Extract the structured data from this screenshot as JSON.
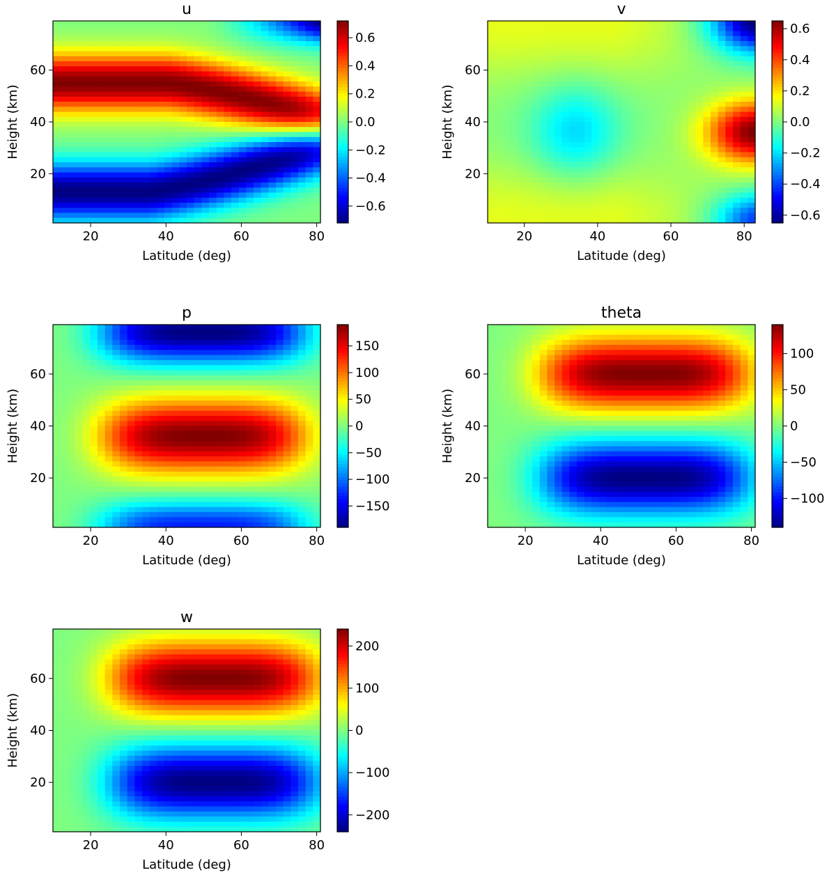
{
  "chart_data": [
    {
      "id": "u",
      "type": "heatmap",
      "title": "u",
      "xlabel": "Latitude (deg)",
      "ylabel": "Height (km)",
      "xlim": [
        10,
        81
      ],
      "ylim": [
        1,
        79
      ],
      "xticks": [
        20,
        40,
        60,
        80
      ],
      "yticks": [
        20,
        40,
        60
      ],
      "colorbar": {
        "range": [
          -0.72,
          0.72
        ],
        "ticks": [
          -0.6,
          -0.4,
          -0.2,
          0.0,
          0.2,
          0.4,
          0.6
        ],
        "tick_labels": [
          "−0.6",
          "−0.4",
          "−0.2",
          "0.0",
          "0.2",
          "0.4",
          "0.6"
        ]
      },
      "pattern": "Positive band centred near 55 km at 10–40° descending to ~40 km at 80°; negative band near 15 km at 40° rising toward 30 km at 80°; negative at top right near 75 km, 80°"
    },
    {
      "id": "v",
      "type": "heatmap",
      "title": "v",
      "xlabel": "Latitude (deg)",
      "ylabel": "Height (km)",
      "xlim": [
        10,
        83
      ],
      "ylim": [
        1,
        79
      ],
      "xticks": [
        20,
        40,
        60,
        80
      ],
      "yticks": [
        20,
        40,
        60
      ],
      "colorbar": {
        "range": [
          -0.65,
          0.65
        ],
        "ticks": [
          -0.6,
          -0.4,
          -0.2,
          0.0,
          0.2,
          0.4,
          0.6
        ],
        "tick_labels": [
          "−0.6",
          "−0.4",
          "−0.2",
          "0.0",
          "0.2",
          "0.4",
          "0.6"
        ]
      },
      "pattern": "Weak positive (~0.15) at top and bottom at low latitudes; weak negative minimum (~−0.2) near 35 km, 34°; strong positive maximum (~0.6) near 35 km, 82°; strong negative (~−0.65) near 78 km, 82° and weaker negative near 5 km, 80°"
    },
    {
      "id": "p",
      "type": "heatmap",
      "title": "p",
      "xlabel": "Latitude (deg)",
      "ylabel": "Height (km)",
      "xlim": [
        10,
        81
      ],
      "ylim": [
        1,
        79
      ],
      "xticks": [
        20,
        40,
        60,
        80
      ],
      "yticks": [
        20,
        40,
        60
      ],
      "colorbar": {
        "range": [
          -190,
          190
        ],
        "ticks": [
          -150,
          -100,
          -50,
          0,
          50,
          100,
          150
        ],
        "tick_labels": [
          "−150",
          "−100",
          "−50",
          "0",
          "50",
          "100",
          "150"
        ]
      },
      "pattern": "Positive maximum (~190) near 36 km, 50°; negative minima (~−190) near 75 km, 50° and weaker negative near 3 km; amplitude fades toward 10° and 80°"
    },
    {
      "id": "theta",
      "type": "heatmap",
      "title": "theta",
      "xlabel": "Latitude (deg)",
      "ylabel": "Height (km)",
      "xlim": [
        10,
        81
      ],
      "ylim": [
        1,
        79
      ],
      "xticks": [
        20,
        40,
        60,
        80
      ],
      "yticks": [
        20,
        40,
        60
      ],
      "colorbar": {
        "range": [
          -140,
          140
        ],
        "ticks": [
          -100,
          -50,
          0,
          50,
          100
        ],
        "tick_labels": [
          "−100",
          "−50",
          "0",
          "50",
          "100"
        ]
      },
      "pattern": "Positive maximum (~140) near 60 km, 52°; negative minimum (~−140) near 20 km, 52°; near zero at top, bottom and edges"
    },
    {
      "id": "w",
      "type": "heatmap",
      "title": "w",
      "xlabel": "Latitude (deg)",
      "ylabel": "Height (km)",
      "xlim": [
        10,
        81
      ],
      "ylim": [
        1,
        79
      ],
      "xticks": [
        20,
        40,
        60,
        80
      ],
      "yticks": [
        20,
        40,
        60
      ],
      "colorbar": {
        "range": [
          -240,
          240
        ],
        "ticks": [
          -200,
          -100,
          0,
          100,
          200
        ],
        "tick_labels": [
          "−200",
          "−100",
          "0",
          "100",
          "200"
        ]
      },
      "pattern": "Positive maximum (~240) near 60 km, 53°; negative minimum (~−240) near 20 km, 53°; near zero at top, bottom and edges"
    }
  ]
}
